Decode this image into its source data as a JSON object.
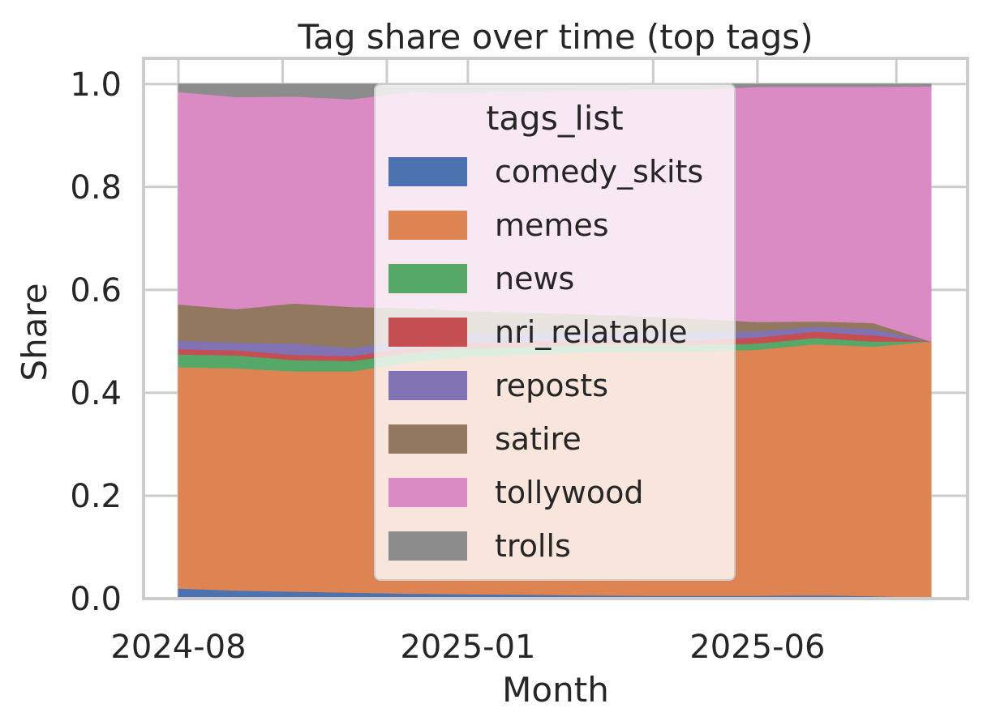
{
  "chart_data": {
    "type": "area",
    "stacked": true,
    "normalized": true,
    "title": "Tag share over time (top tags)",
    "xlabel": "Month",
    "ylabel": "Share",
    "x": [
      "2024-08",
      "2024-09",
      "2024-10",
      "2024-11",
      "2024-12",
      "2025-01",
      "2025-02",
      "2025-03",
      "2025-04",
      "2025-05",
      "2025-06",
      "2025-07",
      "2025-08",
      "2025-09"
    ],
    "xticks": [
      "2024-08",
      "2025-01",
      "2025-06"
    ],
    "yticks": [
      "0.0",
      "0.2",
      "0.4",
      "0.6",
      "0.8",
      "1.0"
    ],
    "ylim": [
      0,
      1.05
    ],
    "grid": true,
    "legend": {
      "title": "tags_list",
      "placement": "upper center"
    },
    "series": [
      {
        "name": "comedy_skits",
        "color": "#4c72b0",
        "values": [
          0.02,
          0.016,
          0.014,
          0.012,
          0.01,
          0.009,
          0.008,
          0.007,
          0.006,
          0.006,
          0.006,
          0.007,
          0.005,
          0.002
        ]
      },
      {
        "name": "memes",
        "color": "#dd8452",
        "values": [
          0.43,
          0.432,
          0.428,
          0.43,
          0.45,
          0.462,
          0.466,
          0.472,
          0.475,
          0.475,
          0.478,
          0.488,
          0.485,
          0.498
        ]
      },
      {
        "name": "news",
        "color": "#55a868",
        "values": [
          0.025,
          0.025,
          0.022,
          0.02,
          0.018,
          0.016,
          0.015,
          0.014,
          0.013,
          0.012,
          0.012,
          0.012,
          0.01,
          0.0
        ]
      },
      {
        "name": "nri_relatable",
        "color": "#c44e52",
        "values": [
          0.01,
          0.01,
          0.01,
          0.01,
          0.01,
          0.01,
          0.01,
          0.01,
          0.01,
          0.01,
          0.012,
          0.012,
          0.012,
          0.0
        ]
      },
      {
        "name": "reposts",
        "color": "#8172b3",
        "values": [
          0.017,
          0.015,
          0.022,
          0.015,
          0.017,
          0.017,
          0.017,
          0.015,
          0.015,
          0.016,
          0.012,
          0.01,
          0.012,
          0.0
        ]
      },
      {
        "name": "satire",
        "color": "#937860",
        "values": [
          0.07,
          0.065,
          0.078,
          0.08,
          0.06,
          0.045,
          0.04,
          0.035,
          0.03,
          0.025,
          0.018,
          0.01,
          0.012,
          0.0
        ]
      },
      {
        "name": "tollywood",
        "color": "#da8bc3",
        "values": [
          0.413,
          0.412,
          0.402,
          0.404,
          0.42,
          0.425,
          0.43,
          0.435,
          0.44,
          0.445,
          0.457,
          0.456,
          0.459,
          0.496
        ]
      },
      {
        "name": "trolls",
        "color": "#8c8c8c",
        "values": [
          0.015,
          0.025,
          0.024,
          0.029,
          0.015,
          0.016,
          0.014,
          0.012,
          0.011,
          0.011,
          0.005,
          0.005,
          0.005,
          0.004
        ]
      }
    ]
  }
}
